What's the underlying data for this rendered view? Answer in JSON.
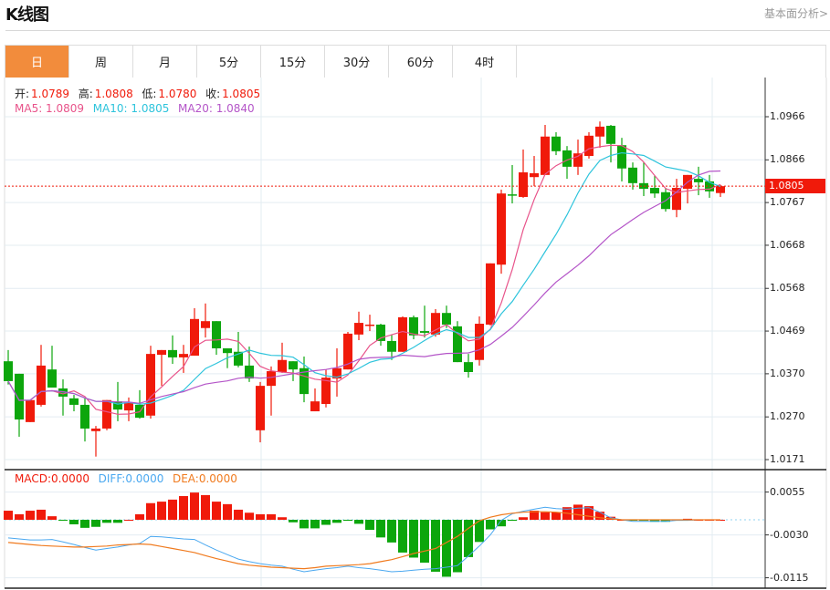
{
  "header": {
    "title": "K线图",
    "link": "基本面分析>"
  },
  "tabs": [
    {
      "label": "日",
      "active": true
    },
    {
      "label": "周"
    },
    {
      "label": "月"
    },
    {
      "label": "5分"
    },
    {
      "label": "15分"
    },
    {
      "label": "30分"
    },
    {
      "label": "60分"
    },
    {
      "label": "4时"
    }
  ],
  "legend": {
    "open_label": "开:",
    "open": "1.0789",
    "high_label": "高:",
    "high": "1.0808",
    "low_label": "低:",
    "low": "1.0780",
    "close_label": "收:",
    "close": "1.0805",
    "ma5": "MA5: 1.0809",
    "ma10": "MA10: 1.0805",
    "ma20": "MA20: 1.0840"
  },
  "macd_legend": {
    "macd": "MACD:0.0000",
    "diff": "DIFF:0.0000",
    "dea": "DEA:0.0000"
  },
  "current_price": "1.0805",
  "colors": {
    "up": "#f01a0a",
    "down": "#0ca60c",
    "ma5": "#e8538a",
    "ma10": "#2ec4dc",
    "ma20": "#b455c8",
    "diff": "#4aa8f0",
    "dea": "#f07a1e",
    "accent": "#f28c3c"
  },
  "chart_data": [
    {
      "type": "candlestick",
      "title": "K线图",
      "yticks": [
        "1.0966",
        "1.0866",
        "1.0767",
        "1.0668",
        "1.0568",
        "1.0469",
        "1.0370",
        "1.0270",
        "1.0171"
      ],
      "ylim": [
        1.0171,
        1.0966
      ],
      "ohlc": [
        [
          1.0399,
          1.0425,
          1.0345,
          1.0353
        ],
        [
          1.037,
          1.037,
          1.0224,
          1.0264
        ],
        [
          1.0258,
          1.0309,
          1.0258,
          1.0309
        ],
        [
          1.0298,
          1.0437,
          1.0294,
          1.0389
        ],
        [
          1.038,
          1.0435,
          1.0338,
          1.0338
        ],
        [
          1.0336,
          1.0357,
          1.0273,
          1.0317
        ],
        [
          1.0313,
          1.0321,
          1.0283,
          1.0298
        ],
        [
          1.0298,
          1.0313,
          1.0213,
          1.0243
        ],
        [
          1.0237,
          1.0249,
          1.0178,
          1.0243
        ],
        [
          1.0243,
          1.0309,
          1.0239,
          1.0309
        ],
        [
          1.0306,
          1.0351,
          1.026,
          1.0287
        ],
        [
          1.0285,
          1.0315,
          1.026,
          1.0302
        ],
        [
          1.0298,
          1.0332,
          1.0266,
          1.0268
        ],
        [
          1.0273,
          1.0435,
          1.0266,
          1.0416
        ],
        [
          1.0414,
          1.0425,
          1.0342,
          1.0425
        ],
        [
          1.0425,
          1.0459,
          1.0393,
          1.0408
        ],
        [
          1.0408,
          1.0437,
          1.0372,
          1.0416
        ],
        [
          1.0412,
          1.0522,
          1.0412,
          1.0497
        ],
        [
          1.0476,
          1.0533,
          1.0454,
          1.0492
        ],
        [
          1.0492,
          1.0492,
          1.0414,
          1.0429
        ],
        [
          1.0429,
          1.0429,
          1.0383,
          1.0418
        ],
        [
          1.0421,
          1.0467,
          1.0385,
          1.0389
        ],
        [
          1.0389,
          1.0433,
          1.0351,
          1.0359
        ],
        [
          1.0239,
          1.0351,
          1.0211,
          1.0342
        ],
        [
          1.0342,
          1.0387,
          1.0273,
          1.0376
        ],
        [
          1.0374,
          1.0442,
          1.0372,
          1.0402
        ],
        [
          1.0399,
          1.0399,
          1.0353,
          1.038
        ],
        [
          1.0383,
          1.041,
          1.0304,
          1.0323
        ],
        [
          1.0283,
          1.0336,
          1.0283,
          1.0306
        ],
        [
          1.03,
          1.038,
          1.0292,
          1.0361
        ],
        [
          1.0359,
          1.0429,
          1.0317,
          1.0383
        ],
        [
          1.038,
          1.0467,
          1.038,
          1.0463
        ],
        [
          1.0461,
          1.0514,
          1.0448,
          1.0488
        ],
        [
          1.0482,
          1.0507,
          1.0469,
          1.0484
        ],
        [
          1.0484,
          1.0486,
          1.0435,
          1.0446
        ],
        [
          1.0446,
          1.0461,
          1.0402,
          1.0421
        ],
        [
          1.0421,
          1.0503,
          1.0421,
          1.0501
        ],
        [
          1.0501,
          1.0505,
          1.045,
          1.0459
        ],
        [
          1.0469,
          1.0528,
          1.0454,
          1.0465
        ],
        [
          1.0461,
          1.052,
          1.0456,
          1.0511
        ],
        [
          1.0511,
          1.0528,
          1.0476,
          1.0484
        ],
        [
          1.048,
          1.0492,
          1.0397,
          1.0397
        ],
        [
          1.0397,
          1.0416,
          1.0361,
          1.0374
        ],
        [
          1.0402,
          1.0503,
          1.0389,
          1.0486
        ],
        [
          1.0484,
          1.0626,
          1.0482,
          1.0626
        ],
        [
          1.0623,
          1.0797,
          1.0602,
          1.0788
        ],
        [
          1.0786,
          1.0854,
          1.0765,
          1.0784
        ],
        [
          1.078,
          1.089,
          1.0778,
          1.0837
        ],
        [
          1.0826,
          1.0875,
          1.0805,
          1.0835
        ],
        [
          1.0831,
          1.0947,
          1.0831,
          1.092
        ],
        [
          1.092,
          1.093,
          1.0877,
          1.0886
        ],
        [
          1.0888,
          1.0898,
          1.0822,
          1.085
        ],
        [
          1.085,
          1.0913,
          1.0831,
          1.0881
        ],
        [
          1.0875,
          1.093,
          1.0869,
          1.0922
        ],
        [
          1.092,
          1.0955,
          1.0894,
          1.0943
        ],
        [
          1.0945,
          1.0947,
          1.086,
          1.0903
        ],
        [
          1.09,
          1.0917,
          1.0816,
          1.0846
        ],
        [
          1.0848,
          1.086,
          1.0797,
          1.0812
        ],
        [
          1.0812,
          1.086,
          1.0782,
          1.0799
        ],
        [
          1.0801,
          1.0829,
          1.0778,
          1.0788
        ],
        [
          1.0791,
          1.0801,
          1.0746,
          1.0752
        ],
        [
          1.075,
          1.0822,
          1.0733,
          1.0801
        ],
        [
          1.0799,
          1.0831,
          1.0765,
          1.0831
        ],
        [
          1.0822,
          1.085,
          1.0784,
          1.0814
        ],
        [
          1.0816,
          1.0831,
          1.0778,
          1.0793
        ],
        [
          1.0789,
          1.0808,
          1.078,
          1.0805
        ]
      ],
      "ma_periods": [
        5,
        10,
        20
      ]
    },
    {
      "type": "bar",
      "title": "MACD",
      "yticks": [
        "0.0055",
        "-0.0030",
        "-0.0115"
      ],
      "macd": [
        0.0018,
        0.0011,
        0.0018,
        0.002,
        0.0007,
        -0.0001,
        -0.0009,
        -0.0016,
        -0.0014,
        -0.0006,
        -0.0006,
        0.0,
        0.0011,
        0.0033,
        0.0036,
        0.004,
        0.0047,
        0.0054,
        0.0049,
        0.0036,
        0.0031,
        0.002,
        0.0014,
        0.0011,
        0.0011,
        0.0005,
        -0.0005,
        -0.0017,
        -0.0017,
        -0.001,
        -0.0006,
        -0.0002,
        -0.0008,
        -0.002,
        -0.0035,
        -0.0045,
        -0.0065,
        -0.0075,
        -0.0085,
        -0.0103,
        -0.0113,
        -0.0104,
        -0.0074,
        -0.0044,
        -0.0019,
        -0.0013,
        -0.0002,
        0.0005,
        0.0018,
        0.0015,
        0.0015,
        0.0025,
        0.003,
        0.0027,
        0.0016,
        0.0006,
        0.0,
        -0.0001,
        -0.0002,
        -0.0004,
        -0.0004,
        0.0,
        0.0002,
        0.0,
        0.0,
        0.0
      ],
      "diff": [
        -0.0036,
        -0.0038,
        -0.004,
        -0.004,
        -0.0039,
        -0.0044,
        -0.0049,
        -0.0055,
        -0.006,
        -0.0057,
        -0.0054,
        -0.005,
        -0.0047,
        -0.0033,
        -0.0034,
        -0.0036,
        -0.0038,
        -0.0039,
        -0.005,
        -0.006,
        -0.0069,
        -0.0078,
        -0.0083,
        -0.0087,
        -0.009,
        -0.0092,
        -0.0098,
        -0.0103,
        -0.01,
        -0.0097,
        -0.0095,
        -0.0092,
        -0.0095,
        -0.0097,
        -0.01,
        -0.0103,
        -0.0102,
        -0.01,
        -0.0098,
        -0.0097,
        -0.0094,
        -0.0091,
        -0.0072,
        -0.0052,
        -0.003,
        -0.0001,
        0.0012,
        0.0017,
        0.0021,
        0.0025,
        0.0022,
        0.0021,
        0.0023,
        0.0024,
        0.0015,
        0.0004,
        0.0,
        -0.0003,
        -0.0003,
        -0.0003,
        -0.0003,
        -0.0001,
        -0.0001,
        0.0,
        0.0,
        0.0
      ],
      "dea": [
        -0.0045,
        -0.0047,
        -0.0049,
        -0.0051,
        -0.0052,
        -0.0053,
        -0.0054,
        -0.0054,
        -0.0053,
        -0.0052,
        -0.005,
        -0.0049,
        -0.0048,
        -0.0049,
        -0.0053,
        -0.0057,
        -0.0061,
        -0.0065,
        -0.0071,
        -0.0077,
        -0.0082,
        -0.0087,
        -0.009,
        -0.0092,
        -0.0094,
        -0.0095,
        -0.0096,
        -0.0097,
        -0.0095,
        -0.0092,
        -0.0091,
        -0.009,
        -0.0089,
        -0.0087,
        -0.0083,
        -0.0079,
        -0.0073,
        -0.0067,
        -0.0062,
        -0.0057,
        -0.0045,
        -0.0033,
        -0.0017,
        -0.0002,
        0.0005,
        0.001,
        0.0013,
        0.0015,
        0.0016,
        0.0016,
        0.0015,
        0.0013,
        0.001,
        0.0007,
        0.0004,
        0.0002,
        0.0,
        0.0,
        0.0,
        0.0,
        0.0,
        0.0,
        0.0,
        0.0,
        0.0,
        0.0
      ]
    }
  ]
}
